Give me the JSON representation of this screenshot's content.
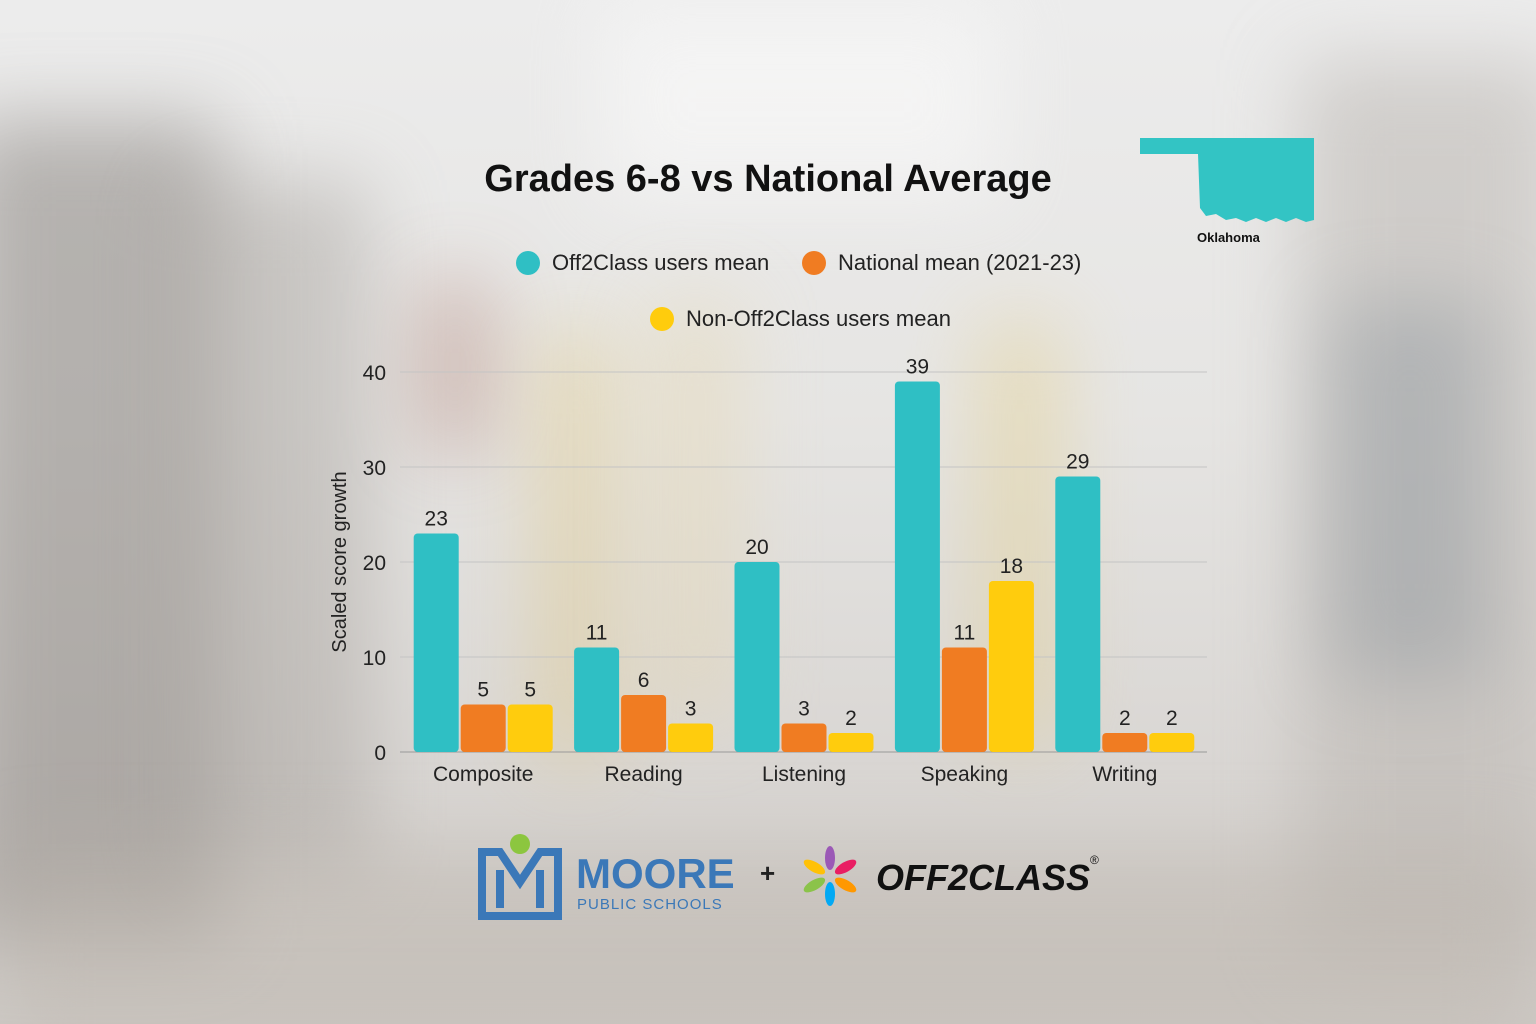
{
  "title": "Grades 6-8 vs National Average",
  "state_label": "Oklahoma",
  "legend": [
    {
      "label": "Off2Class users mean",
      "color": "#2fbfc4"
    },
    {
      "label": "National mean (2021-23)",
      "color": "#f07c22"
    },
    {
      "label": "Non-Off2Class users mean",
      "color": "#ffcc0d"
    }
  ],
  "chart_data": {
    "type": "bar",
    "categories": [
      "Composite",
      "Reading",
      "Listening",
      "Speaking",
      "Writing"
    ],
    "series": [
      {
        "name": "Off2Class users mean",
        "values": [
          23,
          11,
          20,
          39,
          29
        ],
        "color": "#2fbfc4"
      },
      {
        "name": "National mean (2021-23)",
        "values": [
          5,
          6,
          3,
          11,
          2
        ],
        "color": "#f07c22"
      },
      {
        "name": "Non-Off2Class users mean",
        "values": [
          5,
          3,
          2,
          18,
          2
        ],
        "color": "#ffcc0d"
      }
    ],
    "ylabel": "Scaled score growth",
    "ylim": [
      0,
      40
    ],
    "yticks": [
      0,
      10,
      20,
      30,
      40
    ],
    "grid": true
  },
  "logos": {
    "moore_line1": "MOORE",
    "moore_line2": "PUBLIC SCHOOLS",
    "plus": "+",
    "off2class": "OFF2CLASS",
    "registered": "®"
  }
}
